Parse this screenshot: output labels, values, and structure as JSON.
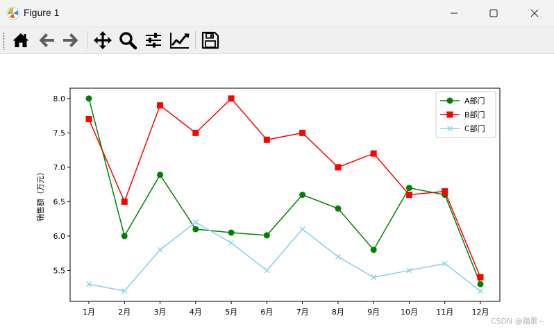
{
  "window": {
    "title": "Figure 1",
    "minimize_icon": "minimize-icon",
    "maximize_icon": "maximize-icon",
    "close_icon": "close-icon"
  },
  "toolbar": {
    "buttons": [
      {
        "name": "home-button",
        "icon": "home-icon"
      },
      {
        "name": "back-button",
        "icon": "arrow-left-icon"
      },
      {
        "name": "forward-button",
        "icon": "arrow-right-icon"
      },
      {
        "name": "pan-button",
        "icon": "move-icon"
      },
      {
        "name": "zoom-button",
        "icon": "magnifier-icon"
      },
      {
        "name": "subplots-button",
        "icon": "sliders-icon"
      },
      {
        "name": "edit-axes-button",
        "icon": "line-chart-icon"
      },
      {
        "name": "save-button",
        "icon": "floppy-disk-icon"
      }
    ]
  },
  "chart_data": {
    "type": "line",
    "title": "",
    "xlabel": "",
    "ylabel": "销售额（万元）",
    "categories": [
      "1月",
      "2月",
      "3月",
      "4月",
      "5月",
      "6月",
      "7月",
      "8月",
      "9月",
      "10月",
      "11月",
      "12月"
    ],
    "ylim": [
      5.05,
      8.15
    ],
    "yticks": [
      5.5,
      6.0,
      6.5,
      7.0,
      7.5,
      8.0
    ],
    "ytick_labels": [
      "5.5",
      "6.0",
      "6.5",
      "7.0",
      "7.5",
      "8.0"
    ],
    "grid": false,
    "legend": "top-right",
    "series": [
      {
        "name": "A部门",
        "color": "#008000",
        "marker": "circle",
        "values": [
          8.0,
          6.0,
          6.89,
          6.1,
          6.05,
          6.01,
          6.6,
          6.4,
          5.8,
          6.7,
          6.6,
          5.3
        ]
      },
      {
        "name": "B部门",
        "color": "#ff0000",
        "marker": "square",
        "values": [
          7.7,
          6.5,
          7.9,
          7.5,
          8.0,
          7.4,
          7.5,
          7.0,
          7.2,
          6.6,
          6.65,
          5.4
        ]
      },
      {
        "name": "C部门",
        "color": "#87ceeb",
        "marker": "x",
        "values": [
          5.3,
          5.2,
          5.8,
          6.2,
          5.9,
          5.5,
          6.1,
          5.7,
          5.4,
          5.5,
          5.6,
          5.2
        ]
      }
    ]
  },
  "watermark": "CSDN @踏歌~"
}
